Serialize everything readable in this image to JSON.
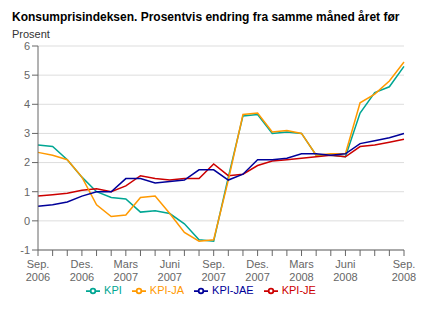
{
  "chart_data": {
    "type": "line",
    "title": "Konsumprisindeksen. Prosentvis endring fra samme måned året før",
    "y_label": "Prosent",
    "categories": [
      "Sep.\n2006",
      null,
      null,
      "Des.\n2006",
      null,
      null,
      "Mars\n2007",
      null,
      null,
      "Juni\n2007",
      null,
      null,
      "Sep.\n2007",
      null,
      null,
      "Des.\n2007",
      null,
      null,
      "Mars\n2008",
      null,
      null,
      "Juni\n2008",
      null,
      null,
      null,
      "Sep.\n2008"
    ],
    "series": [
      {
        "name": "KPI",
        "color": "#00A693",
        "values": [
          2.6,
          2.55,
          2.1,
          1.5,
          1.0,
          0.8,
          0.75,
          0.3,
          0.35,
          0.25,
          -0.1,
          -0.65,
          -0.7,
          1.5,
          3.6,
          3.65,
          3.0,
          3.05,
          3.0,
          2.25,
          2.25,
          2.2,
          3.7,
          4.4,
          4.6,
          5.3
        ]
      },
      {
        "name": "KPI-JE",
        "color": "#CC0000",
        "values": [
          0.85,
          0.9,
          0.95,
          1.05,
          1.1,
          1.0,
          1.2,
          1.55,
          1.45,
          1.4,
          1.45,
          1.45,
          1.95,
          1.55,
          1.6,
          1.9,
          2.05,
          2.1,
          2.15,
          2.2,
          2.25,
          2.2,
          2.55,
          2.6,
          2.7,
          2.8
        ]
      },
      {
        "name": "KPI-JA",
        "color": "#FF9900",
        "values": [
          2.35,
          2.25,
          2.1,
          1.5,
          0.55,
          0.15,
          0.2,
          0.8,
          0.85,
          0.25,
          -0.4,
          -0.7,
          -0.65,
          1.4,
          3.65,
          3.7,
          3.05,
          3.1,
          3.0,
          2.25,
          2.3,
          2.3,
          4.05,
          4.35,
          4.8,
          5.45
        ]
      },
      {
        "name": "KPI-JAE",
        "color": "#000099",
        "values": [
          0.5,
          0.55,
          0.65,
          0.85,
          1.0,
          1.0,
          1.45,
          1.45,
          1.3,
          1.35,
          1.4,
          1.75,
          1.75,
          1.4,
          1.6,
          2.1,
          2.1,
          2.15,
          2.3,
          2.3,
          2.25,
          2.3,
          2.65,
          2.75,
          2.85,
          3.0
        ]
      }
    ],
    "ylim": [
      -1,
      6
    ],
    "yticks": [
      -1,
      0,
      1,
      2,
      3,
      4,
      5,
      6
    ],
    "grid": true,
    "legend": "bottom"
  }
}
